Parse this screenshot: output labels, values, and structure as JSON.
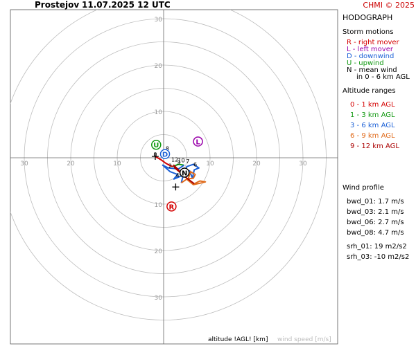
{
  "header": {
    "station": "Prostejov",
    "datetime": "11.07.2025 12 UTC",
    "copyright": "CHMI © 2025"
  },
  "panel": {
    "title": "HODOGRAPH",
    "storm_motions_title": "Storm motions",
    "storm_motions": [
      {
        "text": "R - right mover",
        "color": "#d40000"
      },
      {
        "text": "L - left mover",
        "color": "#9900aa"
      },
      {
        "text": "D - downwind",
        "color": "#1a5fd6"
      },
      {
        "text": "U - upwind",
        "color": "#119911"
      },
      {
        "text": "N - mean wind",
        "color": "#000000"
      },
      {
        "text": "in 0 - 6 km AGL",
        "color": "#000000"
      }
    ],
    "altitude_title": "Altitude ranges",
    "altitude_ranges": [
      {
        "text": "0 - 1 km AGL",
        "color": "#d40000"
      },
      {
        "text": "1 - 3 km AGL",
        "color": "#119911"
      },
      {
        "text": "3 - 6 km AGL",
        "color": "#1a5fd6"
      },
      {
        "text": "6 - 9 km AGL",
        "color": "#e06a1a"
      },
      {
        "text": "9 - 12 km AGL",
        "color": "#aa0000"
      }
    ],
    "wind_profile_title": "Wind profile",
    "wind_profile": [
      "bwd_01: 1.7 m/s",
      "bwd_03: 2.1 m/s",
      "bwd_06: 2.7 m/s",
      "bwd_08: 4.7 m/s",
      "srh_01: 19 m2/s2",
      "srh_03: -10 m2/s2"
    ]
  },
  "footer": {
    "altitude_label": "altitude !AGL! [km]",
    "speed_label": "wind speed [m/s]"
  },
  "chart_data": {
    "type": "line",
    "xlim": [
      -33,
      33
    ],
    "ylim": [
      -33,
      33
    ],
    "rings": [
      5,
      10,
      15,
      20,
      25,
      30,
      35
    ],
    "tick_labels": {
      "x_left": [
        "30",
        "20",
        "10"
      ],
      "x_right": [
        "10",
        "20",
        "30"
      ],
      "y_up": [
        "30",
        "20",
        "10"
      ],
      "y_down": [
        "10",
        "20",
        "30"
      ]
    },
    "tick_values": [
      10,
      20,
      30
    ],
    "grid": true,
    "segments": [
      {
        "range": "0-1 km",
        "color": "#d40000",
        "points": [
          [
            -1.8,
            0.3
          ],
          [
            -0.6,
            -0.4
          ],
          [
            0.5,
            -1.2
          ],
          [
            1.4,
            -1.7
          ],
          [
            2.0,
            -1.9
          ]
        ]
      },
      {
        "range": "1-3 km",
        "color": "#119911",
        "points": [
          [
            2.0,
            -1.9
          ],
          [
            3.2,
            -1.4
          ],
          [
            4.4,
            -1.6
          ]
        ]
      },
      {
        "range": "3-6 km",
        "color": "#1a5fd6",
        "points": [
          [
            4.4,
            -1.6
          ],
          [
            3.2,
            -2.4
          ],
          [
            1.0,
            -2.2
          ],
          [
            -0.2,
            -1.6
          ],
          [
            1.4,
            -3.0
          ],
          [
            3.0,
            -3.6
          ],
          [
            2.2,
            -4.6
          ],
          [
            3.6,
            -4.0
          ],
          [
            5.2,
            -3.6
          ],
          [
            5.6,
            -2.8
          ],
          [
            6.2,
            -4.4
          ],
          [
            6.6,
            -2.6
          ],
          [
            7.6,
            -2.2
          ],
          [
            6.4,
            -1.4
          ],
          [
            5.0,
            -1.9
          ],
          [
            4.2,
            -3.8
          ],
          [
            3.8,
            -5.4
          ]
        ]
      },
      {
        "range": "6-9 km",
        "color": "#e06a1a",
        "points": [
          [
            3.8,
            -5.4
          ],
          [
            5.0,
            -4.6
          ],
          [
            6.4,
            -4.4
          ],
          [
            6.8,
            -3.6
          ],
          [
            5.8,
            -3.0
          ],
          [
            5.2,
            -4.8
          ],
          [
            6.4,
            -5.8
          ],
          [
            8.2,
            -5.4
          ],
          [
            9.0,
            -5.2
          ],
          [
            7.8,
            -5.0
          ],
          [
            6.6,
            -5.6
          ]
        ]
      },
      {
        "range": "9-12 km",
        "color": "#aa0000",
        "points": [
          [
            6.6,
            -5.6
          ],
          [
            5.0,
            -4.4
          ],
          [
            3.6,
            -3.2
          ],
          [
            2.4,
            -2.2
          ],
          [
            2.2,
            -1.6
          ],
          [
            3.4,
            -2.8
          ]
        ]
      }
    ],
    "altitude_labels": [
      {
        "text": "0",
        "x": -1.8,
        "y": 0.3
      },
      {
        "text": "2",
        "x": 1.4,
        "y": -2.2
      },
      {
        "text": "3",
        "x": 3.2,
        "y": -1.4
      },
      {
        "text": "4",
        "x": 3.0,
        "y": -4.2
      },
      {
        "text": "6",
        "x": 6.8,
        "y": -1.9
      },
      {
        "text": "7",
        "x": 5.2,
        "y": -1.2
      },
      {
        "text": "8",
        "x": 0.8,
        "y": 1.6
      },
      {
        "text": "10",
        "x": 3.8,
        "y": -1.0
      },
      {
        "text": "12",
        "x": 2.4,
        "y": -0.8
      }
    ],
    "storm_motions": [
      {
        "label": "R",
        "x": 1.7,
        "y": -10.5,
        "color": "#d40000"
      },
      {
        "label": "L",
        "x": 7.4,
        "y": 3.5,
        "color": "#9900aa"
      },
      {
        "label": "D",
        "x": 0.3,
        "y": 0.8,
        "color": "#1a5fd6"
      },
      {
        "label": "U",
        "x": -1.6,
        "y": 2.8,
        "color": "#119911"
      },
      {
        "label": "N",
        "x": 4.5,
        "y": -3.2,
        "color": "#000000"
      }
    ],
    "crosses": [
      {
        "x": -1.8,
        "y": 0.3
      },
      {
        "x": 2.6,
        "y": -6.3
      }
    ]
  }
}
